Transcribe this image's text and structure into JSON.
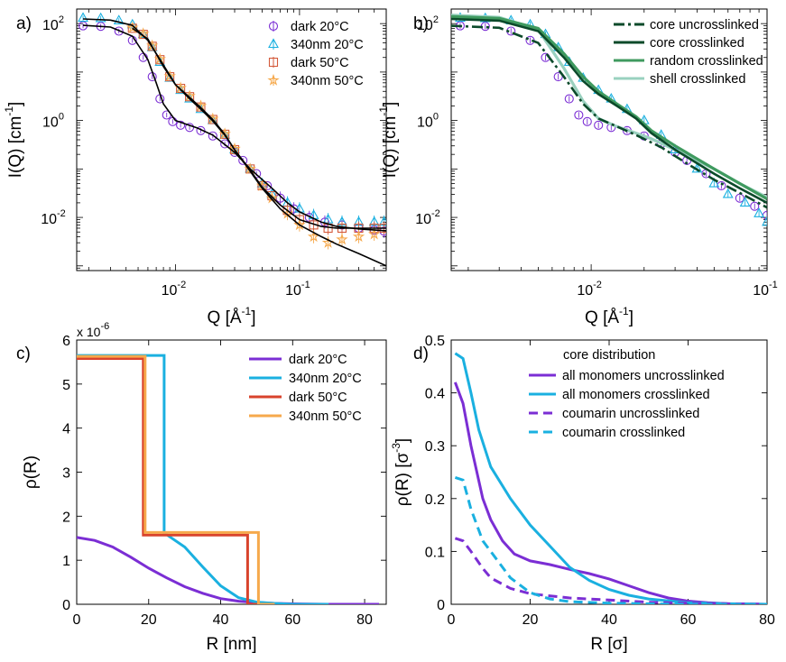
{
  "figure": {
    "panels": [
      "a",
      "b",
      "c",
      "d"
    ]
  },
  "chart_data": [
    {
      "panel_label": "a)",
      "type": "scatter",
      "xlabel": "Q [Å",
      "xlabel_sup": "-1",
      "ylabel": "I(Q) [cm",
      "ylabel_sup": "-1",
      "xscale": "log",
      "yscale": "log",
      "xlim": [
        0.0016,
        0.5
      ],
      "ylim": [
        0.0008,
        200
      ],
      "xticks": [
        {
          "v": 0.01,
          "base": "10",
          "exp": "-2"
        },
        {
          "v": 0.1,
          "base": "10",
          "exp": "-1"
        }
      ],
      "yticks": [
        {
          "v": 100,
          "base": "10",
          "exp": "2"
        },
        {
          "v": 1,
          "base": "10",
          "exp": "0"
        },
        {
          "v": 0.01,
          "base": "10",
          "exp": "-2"
        }
      ],
      "legend": "top-right",
      "grid": false,
      "series": [
        {
          "name": "dark 20°C",
          "color": "#7b2ed4",
          "marker": "circle",
          "x": [
            0.0018,
            0.0025,
            0.0035,
            0.0045,
            0.0055,
            0.0065,
            0.0075,
            0.0085,
            0.0095,
            0.011,
            0.013,
            0.016,
            0.02,
            0.025,
            0.03,
            0.035,
            0.045,
            0.055,
            0.07,
            0.09,
            0.12,
            0.16,
            0.22,
            0.3,
            0.4,
            0.48
          ],
          "y": [
            90,
            88,
            70,
            45,
            20,
            8,
            2.8,
            1.3,
            0.95,
            0.8,
            0.72,
            0.62,
            0.48,
            0.33,
            0.22,
            0.15,
            0.08,
            0.045,
            0.025,
            0.015,
            0.01,
            0.008,
            0.007,
            0.006,
            0.0055,
            0.0052
          ]
        },
        {
          "name": "340nm 20°C",
          "color": "#1ab0e0",
          "marker": "triangle",
          "x": [
            0.0018,
            0.0025,
            0.0035,
            0.0045,
            0.0055,
            0.0065,
            0.0075,
            0.009,
            0.011,
            0.013,
            0.016,
            0.02,
            0.025,
            0.03,
            0.04,
            0.05,
            0.06,
            0.08,
            0.1,
            0.13,
            0.17,
            0.22,
            0.3,
            0.4,
            0.48
          ],
          "y": [
            130,
            128,
            115,
            95,
            60,
            32,
            16,
            7.5,
            4.2,
            2.8,
            1.7,
            1.0,
            0.5,
            0.25,
            0.1,
            0.05,
            0.03,
            0.02,
            0.015,
            0.011,
            0.009,
            0.008,
            0.008,
            0.008,
            0.008
          ]
        },
        {
          "name": "dark 50°C",
          "color": "#d45b3c",
          "marker": "square",
          "x": [
            0.0045,
            0.0055,
            0.0065,
            0.0075,
            0.009,
            0.011,
            0.013,
            0.016,
            0.02,
            0.025,
            0.03,
            0.04,
            0.05,
            0.06,
            0.08,
            0.1,
            0.13,
            0.17,
            0.22,
            0.3,
            0.4,
            0.48
          ],
          "y": [
            80,
            60,
            34,
            18,
            8,
            4.6,
            3.1,
            1.9,
            1.05,
            0.52,
            0.25,
            0.1,
            0.045,
            0.028,
            0.014,
            0.009,
            0.007,
            0.006,
            0.006,
            0.006,
            0.006,
            0.006
          ]
        },
        {
          "name": "340nm 50°C",
          "color": "#f6a94c",
          "marker": "star",
          "x": [
            0.0045,
            0.0055,
            0.0065,
            0.0075,
            0.009,
            0.011,
            0.013,
            0.016,
            0.02,
            0.025,
            0.03,
            0.04,
            0.05,
            0.06,
            0.08,
            0.1,
            0.13,
            0.17,
            0.22,
            0.3,
            0.4
          ],
          "y": [
            82,
            62,
            35,
            18.5,
            8.2,
            4.7,
            3.2,
            2.0,
            1.08,
            0.53,
            0.26,
            0.1,
            0.045,
            0.025,
            0.012,
            0.007,
            0.004,
            0.003,
            0.0035,
            0.004,
            0.0045
          ]
        }
      ],
      "fits": [
        {
          "color": "#000000",
          "x": [
            0.0018,
            0.003,
            0.0045,
            0.006,
            0.007,
            0.008,
            0.01,
            0.012,
            0.015,
            0.02,
            0.03,
            0.04,
            0.06,
            0.08,
            0.1,
            0.15,
            0.2,
            0.3,
            0.5
          ],
          "y": [
            92,
            85,
            55,
            18,
            6,
            2.2,
            1.0,
            0.85,
            0.7,
            0.5,
            0.22,
            0.1,
            0.04,
            0.02,
            0.013,
            0.008,
            0.0065,
            0.0058,
            0.0053
          ]
        },
        {
          "color": "#000000",
          "x": [
            0.0018,
            0.003,
            0.0045,
            0.006,
            0.008,
            0.01,
            0.013,
            0.016,
            0.02,
            0.025,
            0.03,
            0.04,
            0.05,
            0.07,
            0.1,
            0.15,
            0.2,
            0.3,
            0.5
          ],
          "y": [
            125,
            118,
            92,
            45,
            14,
            5.5,
            2.8,
            1.7,
            0.98,
            0.5,
            0.25,
            0.09,
            0.04,
            0.015,
            0.007,
            0.004,
            0.0028,
            0.0018,
            0.001
          ]
        },
        {
          "color": "#000000",
          "x": [
            0.0045,
            0.006,
            0.008,
            0.01,
            0.013,
            0.016,
            0.02,
            0.025,
            0.03,
            0.04,
            0.05,
            0.07,
            0.1,
            0.15,
            0.2,
            0.3,
            0.5
          ],
          "y": [
            80,
            48,
            13,
            5.5,
            3.0,
            1.85,
            1.05,
            0.52,
            0.25,
            0.095,
            0.042,
            0.018,
            0.009,
            0.0065,
            0.006,
            0.006,
            0.006
          ]
        }
      ]
    },
    {
      "panel_label": "b)",
      "type": "scatter",
      "xlabel": "Q [Å",
      "xlabel_sup": "-1",
      "ylabel": "I(Q) [cm",
      "ylabel_sup": "-1",
      "xscale": "log",
      "yscale": "log",
      "xlim": [
        0.0016,
        0.1
      ],
      "ylim": [
        0.0008,
        200
      ],
      "xticks": [
        {
          "v": 0.01,
          "base": "10",
          "exp": "-2"
        },
        {
          "v": 0.1,
          "base": "10",
          "exp": "-1"
        }
      ],
      "yticks": [
        {
          "v": 100,
          "base": "10",
          "exp": "2"
        },
        {
          "v": 1,
          "base": "10",
          "exp": "0"
        },
        {
          "v": 0.01,
          "base": "10",
          "exp": "-2"
        }
      ],
      "legend": "top-right",
      "grid": false,
      "series": [
        {
          "color": "#7b2ed4",
          "marker": "circle",
          "x": [
            0.0018,
            0.0025,
            0.0035,
            0.0045,
            0.0055,
            0.0065,
            0.0075,
            0.0085,
            0.0095,
            0.011,
            0.013,
            0.016,
            0.02,
            0.025,
            0.03,
            0.035,
            0.045,
            0.055,
            0.07,
            0.085,
            0.1
          ],
          "y": [
            90,
            88,
            70,
            45,
            20,
            8,
            2.8,
            1.3,
            0.95,
            0.8,
            0.72,
            0.62,
            0.48,
            0.33,
            0.22,
            0.15,
            0.08,
            0.045,
            0.025,
            0.017,
            0.011
          ]
        },
        {
          "color": "#1ab0e0",
          "marker": "triangle",
          "x": [
            0.0018,
            0.0025,
            0.0035,
            0.0045,
            0.0055,
            0.0065,
            0.0075,
            0.009,
            0.011,
            0.013,
            0.016,
            0.02,
            0.025,
            0.03,
            0.04,
            0.05,
            0.06,
            0.075,
            0.09,
            0.1
          ],
          "y": [
            130,
            128,
            115,
            95,
            60,
            32,
            16,
            7.5,
            4.2,
            2.8,
            1.7,
            1.0,
            0.5,
            0.25,
            0.1,
            0.05,
            0.03,
            0.02,
            0.012,
            0.008
          ]
        }
      ],
      "lines": [
        {
          "name": "core uncrosslinked",
          "color": "#0b4a2a",
          "dash": "12,4,3,4",
          "x": [
            0.0016,
            0.003,
            0.005,
            0.007,
            0.009,
            0.011,
            0.014,
            0.018,
            0.025,
            0.035,
            0.05,
            0.07,
            0.1
          ],
          "y": [
            90,
            82,
            40,
            8,
            2.2,
            1.1,
            0.75,
            0.5,
            0.28,
            0.13,
            0.06,
            0.032,
            0.016
          ]
        },
        {
          "name": "core crosslinked",
          "color": "#0b4a2a",
          "dash": "",
          "x": [
            0.0016,
            0.003,
            0.005,
            0.007,
            0.009,
            0.011,
            0.014,
            0.018,
            0.022,
            0.03,
            0.05,
            0.07,
            0.1
          ],
          "y": [
            125,
            115,
            70,
            20,
            6.5,
            3.5,
            2.0,
            1.1,
            0.55,
            0.25,
            0.08,
            0.04,
            0.02
          ]
        },
        {
          "name": "random crosslinked",
          "color": "#3f9a5f",
          "dash": "",
          "x": [
            0.0016,
            0.003,
            0.005,
            0.007,
            0.009,
            0.011,
            0.014,
            0.018,
            0.022,
            0.03,
            0.05,
            0.07,
            0.1
          ],
          "y": [
            140,
            128,
            80,
            24,
            8,
            4.0,
            2.2,
            1.2,
            0.62,
            0.3,
            0.1,
            0.05,
            0.024
          ]
        },
        {
          "name": "shell crosslinked",
          "color": "#9ad1bf",
          "dash": "",
          "x": [
            0.0016,
            0.003,
            0.005,
            0.007,
            0.009,
            0.011,
            0.014,
            0.018,
            0.022,
            0.03,
            0.05,
            0.07,
            0.1
          ],
          "y": [
            150,
            135,
            75,
            12,
            2.5,
            1.1,
            0.75,
            0.55,
            0.42,
            0.25,
            0.1,
            0.05,
            0.026
          ]
        }
      ]
    },
    {
      "panel_label": "c)",
      "type": "line",
      "xlabel": "R [nm]",
      "ylabel": "ρ(R)",
      "y_multiplier": "x 10",
      "y_multiplier_exp": "-6",
      "xlim": [
        0,
        86
      ],
      "ylim": [
        0,
        6
      ],
      "xticks": [
        0,
        20,
        40,
        60,
        80
      ],
      "yticks": [
        0,
        1,
        2,
        3,
        4,
        5,
        6
      ],
      "legend": "top-right",
      "grid": false,
      "series": [
        {
          "name": "dark 20°C",
          "color": "#7b2ed4",
          "x": [
            0,
            5,
            10,
            15,
            20,
            25,
            30,
            35,
            40,
            45,
            50,
            55,
            60,
            70,
            84
          ],
          "y": [
            1.52,
            1.45,
            1.3,
            1.07,
            0.82,
            0.6,
            0.4,
            0.25,
            0.13,
            0.07,
            0.04,
            0.02,
            0.01,
            0.0,
            0.0
          ]
        },
        {
          "name": "340nm 20°C",
          "color": "#1ab0e0",
          "x": [
            0,
            24.3,
            24.3,
            25,
            30,
            35,
            40,
            45,
            50,
            55,
            60,
            70
          ],
          "y": [
            5.65,
            5.65,
            1.6,
            1.58,
            1.3,
            0.85,
            0.42,
            0.15,
            0.05,
            0.02,
            0.0,
            0.0
          ]
        },
        {
          "name": "dark 50°C",
          "color": "#d9432c",
          "x": [
            0,
            18.5,
            18.5,
            47.5,
            47.5,
            52
          ],
          "y": [
            5.58,
            5.58,
            1.57,
            1.57,
            0.0,
            0.0
          ]
        },
        {
          "name": "340nm 50°C",
          "color": "#f6a94c",
          "x": [
            0,
            19.0,
            19.0,
            50.5,
            50.5,
            55
          ],
          "y": [
            5.63,
            5.63,
            1.63,
            1.63,
            0.0,
            0.0
          ]
        }
      ]
    },
    {
      "panel_label": "d)",
      "type": "line",
      "xlabel": "R [σ]",
      "ylabel": "ρ(R) [σ",
      "ylabel_sup": "-3",
      "xlim": [
        0,
        80
      ],
      "ylim": [
        0,
        0.5
      ],
      "xticks": [
        0,
        20,
        40,
        60,
        80
      ],
      "yticks": [
        0,
        0.1,
        0.2,
        0.3,
        0.4,
        0.5
      ],
      "legend": "top-right",
      "legend_title": "core distribution",
      "grid": false,
      "series": [
        {
          "name": "all monomers uncrosslinked",
          "color": "#7b2ed4",
          "dash": "",
          "x": [
            1,
            3,
            5,
            8,
            10,
            13,
            16,
            20,
            25,
            30,
            35,
            40,
            45,
            50,
            55,
            60,
            65,
            70,
            80
          ],
          "y": [
            0.42,
            0.38,
            0.3,
            0.2,
            0.16,
            0.12,
            0.095,
            0.082,
            0.075,
            0.066,
            0.058,
            0.048,
            0.035,
            0.022,
            0.012,
            0.006,
            0.003,
            0.001,
            0.0
          ]
        },
        {
          "name": "all monomers crosslinked",
          "color": "#1ab0e0",
          "dash": "",
          "x": [
            1,
            3,
            5,
            7,
            10,
            15,
            20,
            25,
            30,
            35,
            40,
            45,
            50,
            60,
            70,
            80
          ],
          "y": [
            0.475,
            0.465,
            0.4,
            0.33,
            0.26,
            0.2,
            0.15,
            0.11,
            0.07,
            0.045,
            0.028,
            0.017,
            0.01,
            0.003,
            0.001,
            0.0
          ]
        },
        {
          "name": "coumarin uncrosslinked",
          "color": "#7b2ed4",
          "dash": "10,6",
          "x": [
            1,
            3,
            5,
            8,
            10,
            15,
            20,
            30,
            40,
            50,
            60,
            70,
            80
          ],
          "y": [
            0.125,
            0.12,
            0.1,
            0.068,
            0.05,
            0.03,
            0.02,
            0.012,
            0.008,
            0.004,
            0.002,
            0.001,
            0.0
          ]
        },
        {
          "name": "coumarin crosslinked",
          "color": "#1ab0e0",
          "dash": "10,6",
          "x": [
            1,
            3,
            5,
            8,
            10,
            15,
            20,
            25,
            30,
            40,
            50,
            60,
            70,
            80
          ],
          "y": [
            0.24,
            0.235,
            0.18,
            0.12,
            0.1,
            0.05,
            0.022,
            0.01,
            0.005,
            0.002,
            0.001,
            0.0,
            0.0,
            0.0
          ]
        }
      ]
    }
  ]
}
